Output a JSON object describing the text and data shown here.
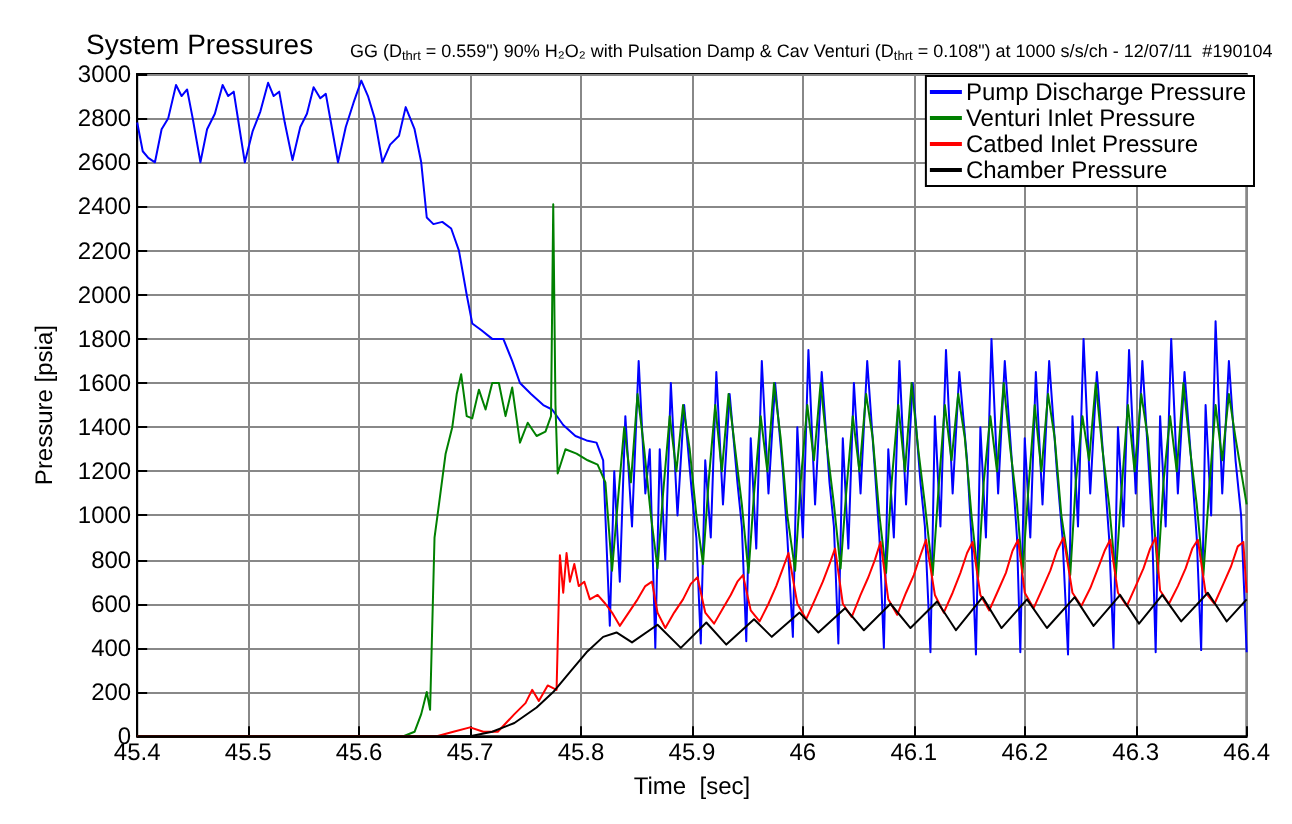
{
  "chart_data": {
    "type": "line",
    "title": "System Pressures",
    "subtitle": "GG (D$_{thrt}$ = 0.559\") 90% H₂O₂ with Pulsation Damp & Cav Venturi (D$_{thrt}$ = 0.108\") at 1000 s/s/ch - 12/07/11  #190104",
    "xlabel": "Time  [sec]",
    "ylabel": "Pressure [psia]",
    "xlim": [
      45.4,
      46.4
    ],
    "xticks": [
      45.4,
      45.5,
      45.6,
      45.7,
      45.8,
      45.9,
      46,
      46.1,
      46.2,
      46.3,
      46.4
    ],
    "ylim": [
      0,
      3000
    ],
    "yticks": [
      0,
      200,
      400,
      600,
      800,
      1000,
      1200,
      1400,
      1600,
      1800,
      2000,
      2200,
      2400,
      2600,
      2800,
      3000
    ],
    "grid": true,
    "legend": "top right",
    "series": [
      {
        "name": "Pump Discharge Pressure",
        "color": "#0000ff",
        "x": [
          45.4,
          45.405,
          45.41,
          45.416,
          45.422,
          45.428,
          45.435,
          45.44,
          45.445,
          45.45,
          45.457,
          45.463,
          45.47,
          45.477,
          45.482,
          45.487,
          45.492,
          45.497,
          45.504,
          45.511,
          45.518,
          45.523,
          45.528,
          45.533,
          45.54,
          45.547,
          45.553,
          45.559,
          45.565,
          45.57,
          45.575,
          45.581,
          45.588,
          45.595,
          45.602,
          45.608,
          45.614,
          45.621,
          45.628,
          45.636,
          45.642,
          45.65,
          45.656,
          45.661,
          45.667,
          45.675,
          45.683,
          45.69,
          45.697,
          45.702,
          45.71,
          45.72,
          45.73,
          45.738,
          45.745,
          45.755,
          45.766,
          45.774,
          45.784,
          45.795,
          45.805,
          45.814,
          45.82,
          45.826,
          45.83,
          45.835,
          45.84,
          45.846,
          45.852,
          45.858,
          45.862,
          45.867,
          45.871,
          45.876,
          45.881,
          45.887,
          45.893,
          45.9,
          45.904,
          45.908,
          45.912,
          45.917,
          45.922,
          45.928,
          45.934,
          45.941,
          45.945,
          45.949,
          45.953,
          45.958,
          45.963,
          45.969,
          45.975,
          45.982,
          45.986,
          45.991,
          45.995,
          46,
          46.005,
          46.011,
          46.017,
          46.024,
          46.028,
          46.032,
          46.036,
          46.041,
          46.046,
          46.052,
          46.058,
          46.065,
          46.069,
          46.073,
          46.077,
          46.082,
          46.087,
          46.093,
          46.099,
          46.106,
          46.11,
          46.115,
          46.119,
          46.124,
          46.129,
          46.135,
          46.141,
          46.148,
          46.152,
          46.156,
          46.16,
          46.165,
          46.17,
          46.176,
          46.182,
          46.189,
          46.193,
          46.196,
          46.2,
          46.205,
          46.21,
          46.216,
          46.222,
          46.229,
          46.234,
          46.239,
          46.243,
          46.248,
          46.253,
          46.259,
          46.265,
          46.271,
          46.276,
          46.28,
          46.284,
          46.289,
          46.294,
          46.3,
          46.306,
          46.312,
          46.315,
          46.318,
          46.322,
          46.327,
          46.332,
          46.338,
          46.344,
          46.35,
          46.355,
          46.359,
          46.363,
          46.368,
          46.372,
          46.378,
          46.384,
          46.39,
          46.395,
          46.4
        ],
        "values": [
          2780,
          2650,
          2620,
          2600,
          2750,
          2800,
          2950,
          2900,
          2930,
          2800,
          2600,
          2750,
          2820,
          2950,
          2900,
          2920,
          2760,
          2600,
          2740,
          2830,
          2960,
          2900,
          2920,
          2780,
          2610,
          2760,
          2820,
          2940,
          2890,
          2910,
          2770,
          2600,
          2760,
          2870,
          2970,
          2900,
          2800,
          2600,
          2680,
          2720,
          2850,
          2750,
          2600,
          2350,
          2320,
          2330,
          2300,
          2200,
          2000,
          1870,
          1840,
          1800,
          1800,
          1700,
          1600,
          1550,
          1500,
          1480,
          1410,
          1360,
          1340,
          1330,
          1250,
          500,
          1200,
          700,
          1450,
          950,
          1700,
          1100,
          1300,
          400,
          1300,
          800,
          1600,
          1000,
          1500,
          1100,
          900,
          420,
          1250,
          900,
          1650,
          1050,
          1550,
          1150,
          950,
          430,
          1350,
          850,
          1700,
          1100,
          1600,
          1200,
          900,
          450,
          1400,
          900,
          1750,
          1050,
          1650,
          1150,
          950,
          420,
          1350,
          850,
          1600,
          1100,
          1700,
          1200,
          900,
          400,
          1300,
          900,
          1700,
          1050,
          1600,
          1150,
          950,
          380,
          1450,
          950,
          1750,
          1100,
          1650,
          1250,
          900,
          370,
          1400,
          900,
          1800,
          1100,
          1700,
          1200,
          900,
          380,
          1350,
          900,
          1650,
          1050,
          1700,
          1200,
          900,
          370,
          1450,
          950,
          1800,
          1100,
          1650,
          1250,
          900,
          400,
          1400,
          950,
          1750,
          1100,
          1700,
          1200,
          900,
          380,
          1450,
          950,
          1800,
          1100,
          1650,
          1250,
          900,
          390,
          1500,
          1000,
          1880,
          1100,
          1700,
          1250,
          1000,
          380
        ]
      },
      {
        "name": "Venturi Inlet Pressure",
        "color": "#008000",
        "x": [
          45.4,
          45.64,
          45.65,
          45.656,
          45.661,
          45.664,
          45.668,
          45.672,
          45.678,
          45.684,
          45.688,
          45.692,
          45.697,
          45.702,
          45.708,
          45.714,
          45.72,
          45.726,
          45.732,
          45.738,
          45.745,
          45.752,
          45.76,
          45.768,
          45.773,
          45.775,
          45.777,
          45.779,
          45.786,
          45.796,
          45.806,
          45.815,
          45.822,
          45.828,
          45.833,
          45.839,
          45.845,
          45.851,
          45.857,
          45.863,
          45.869,
          45.874,
          45.88,
          45.886,
          45.892,
          45.898,
          45.904,
          45.91,
          45.915,
          45.921,
          45.927,
          45.933,
          45.939,
          45.945,
          45.951,
          45.956,
          45.962,
          45.968,
          45.974,
          45.98,
          45.986,
          45.993,
          45.998,
          46.004,
          46.01,
          46.016,
          46.022,
          46.028,
          46.034,
          46.039,
          46.045,
          46.051,
          46.057,
          46.063,
          46.069,
          46.075,
          46.08,
          46.086,
          46.092,
          46.098,
          46.104,
          46.11,
          46.117,
          46.122,
          46.128,
          46.134,
          46.14,
          46.146,
          46.152,
          46.158,
          46.163,
          46.169,
          46.175,
          46.181,
          46.187,
          46.193,
          46.198,
          46.203,
          46.209,
          46.215,
          46.221,
          46.227,
          46.233,
          46.241,
          46.246,
          46.252,
          46.258,
          46.264,
          46.27,
          46.276,
          46.282,
          46.287,
          46.293,
          46.299,
          46.305,
          46.311,
          46.316,
          46.32,
          46.325,
          46.331,
          46.337,
          46.343,
          46.349,
          46.355,
          46.361,
          46.366,
          46.372,
          46.378,
          46.384,
          46.39,
          46.4
        ],
        "values": [
          0,
          0,
          20,
          100,
          200,
          120,
          900,
          1050,
          1280,
          1400,
          1550,
          1640,
          1450,
          1440,
          1570,
          1480,
          1600,
          1600,
          1450,
          1580,
          1330,
          1420,
          1360,
          1380,
          1450,
          2410,
          1500,
          1190,
          1300,
          1280,
          1250,
          1230,
          1150,
          750,
          1050,
          1400,
          1150,
          1550,
          1300,
          1000,
          760,
          1100,
          1450,
          1200,
          1500,
          1300,
          1000,
          780,
          1150,
          1500,
          1200,
          1550,
          1300,
          1050,
          740,
          1100,
          1450,
          1200,
          1600,
          1350,
          1000,
          750,
          1150,
          1500,
          1250,
          1600,
          1300,
          1050,
          760,
          1100,
          1450,
          1200,
          1550,
          1350,
          1000,
          740,
          1150,
          1500,
          1200,
          1600,
          1300,
          1050,
          730,
          1100,
          1500,
          1250,
          1550,
          1350,
          1000,
          720,
          1150,
          1450,
          1200,
          1600,
          1300,
          1050,
          740,
          1100,
          1500,
          1200,
          1550,
          1350,
          1000,
          730,
          1150,
          1450,
          1250,
          1600,
          1300,
          1050,
          720,
          1100,
          1500,
          1200,
          1550,
          1350,
          1000,
          740,
          1150,
          1450,
          1200,
          1600,
          1300,
          1050,
          730,
          1100,
          1500,
          1250,
          1550,
          1350,
          1050
        ]
      },
      {
        "name": "Catbed Inlet Pressure",
        "color": "#ff0000",
        "x": [
          45.4,
          45.67,
          45.685,
          45.7,
          45.712,
          45.725,
          45.74,
          45.75,
          45.756,
          45.762,
          45.77,
          45.778,
          45.781,
          45.784,
          45.787,
          45.79,
          45.794,
          45.798,
          45.803,
          45.808,
          45.815,
          45.822,
          45.828,
          45.835,
          45.843,
          45.851,
          45.858,
          45.864,
          45.869,
          45.876,
          45.884,
          45.892,
          45.899,
          45.905,
          45.912,
          45.92,
          45.928,
          45.935,
          45.941,
          45.946,
          45.953,
          45.961,
          45.969,
          45.976,
          45.982,
          45.987,
          45.995,
          46.003,
          46.011,
          46.018,
          46.024,
          46.029,
          46.036,
          46.044,
          46.052,
          46.059,
          46.065,
          46.07,
          46.077,
          46.085,
          46.093,
          46.1,
          46.106,
          46.111,
          46.119,
          46.127,
          46.135,
          46.142,
          46.148,
          46.153,
          46.16,
          46.168,
          46.176,
          46.183,
          46.189,
          46.194,
          46.2,
          46.208,
          46.216,
          46.223,
          46.229,
          46.235,
          46.243,
          46.251,
          46.259,
          46.266,
          46.272,
          46.277,
          46.284,
          46.292,
          46.3,
          46.307,
          46.313,
          46.318,
          46.322,
          46.33,
          46.338,
          46.345,
          46.351,
          46.356,
          46.363,
          46.371,
          46.379,
          46.386,
          46.392,
          46.397,
          46.4
        ],
        "values": [
          0,
          0,
          20,
          40,
          20,
          20,
          100,
          150,
          210,
          160,
          230,
          210,
          820,
          650,
          830,
          700,
          780,
          680,
          700,
          620,
          640,
          600,
          560,
          500,
          560,
          620,
          680,
          700,
          560,
          490,
          560,
          620,
          690,
          720,
          560,
          510,
          580,
          640,
          700,
          730,
          570,
          520,
          600,
          680,
          760,
          830,
          600,
          530,
          620,
          700,
          780,
          850,
          600,
          540,
          640,
          720,
          800,
          880,
          620,
          550,
          650,
          730,
          820,
          890,
          640,
          560,
          650,
          740,
          830,
          880,
          640,
          570,
          660,
          740,
          840,
          890,
          650,
          580,
          670,
          750,
          840,
          900,
          650,
          590,
          670,
          760,
          840,
          890,
          650,
          590,
          680,
          760,
          850,
          900,
          660,
          600,
          680,
          760,
          850,
          890,
          650,
          600,
          690,
          770,
          860,
          880,
          650
        ]
      },
      {
        "name": "Chamber Pressure",
        "color": "#000000",
        "x": [
          45.4,
          45.7,
          45.72,
          45.74,
          45.76,
          45.775,
          45.79,
          45.805,
          45.82,
          45.832,
          45.846,
          45.869,
          45.89,
          45.913,
          45.931,
          45.956,
          45.972,
          45.997,
          46.014,
          46.038,
          46.055,
          46.079,
          46.097,
          46.121,
          46.138,
          46.162,
          46.179,
          46.202,
          46.22,
          46.245,
          46.262,
          46.286,
          46.303,
          46.324,
          46.341,
          46.365,
          46.382,
          46.4
        ],
        "values": [
          0,
          0,
          20,
          60,
          130,
          200,
          290,
          380,
          450,
          470,
          425,
          505,
          400,
          515,
          415,
          530,
          450,
          560,
          470,
          580,
          480,
          600,
          490,
          610,
          480,
          630,
          490,
          620,
          490,
          630,
          500,
          640,
          510,
          640,
          520,
          650,
          520,
          620
        ]
      }
    ]
  }
}
